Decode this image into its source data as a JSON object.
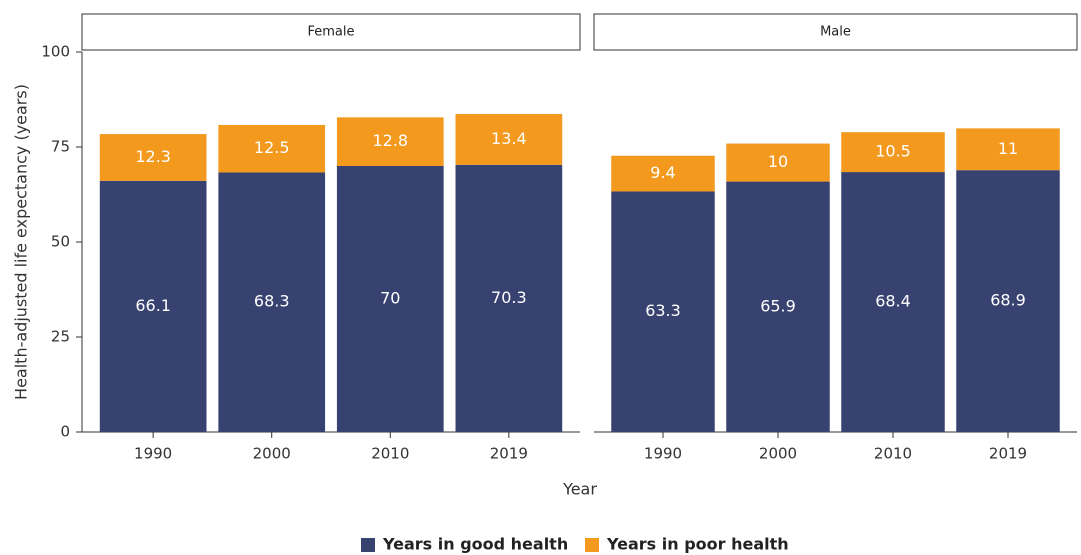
{
  "chart_data": {
    "type": "bar",
    "stacked": true,
    "ylabel": "Health-adjusted life expectancy (years)",
    "xlabel": "Year",
    "categories": [
      "1990",
      "2000",
      "2010",
      "2019"
    ],
    "ylim": [
      0,
      100
    ],
    "yticks": [
      0,
      25,
      50,
      75,
      100
    ],
    "legend": "bottom",
    "series": [
      {
        "name": "Years in good health",
        "color": "#384270"
      },
      {
        "name": "Years in poor health",
        "color": "#f2991e"
      }
    ],
    "facets": [
      {
        "label": "Female",
        "series": [
          {
            "values": [
              66.1,
              68.3,
              70,
              70.3
            ]
          },
          {
            "values": [
              12.3,
              12.5,
              12.8,
              13.4
            ]
          }
        ]
      },
      {
        "label": "Male",
        "series": [
          {
            "values": [
              63.3,
              65.9,
              68.4,
              68.9
            ]
          },
          {
            "values": [
              9.4,
              10,
              10.5,
              11
            ]
          }
        ]
      }
    ]
  }
}
